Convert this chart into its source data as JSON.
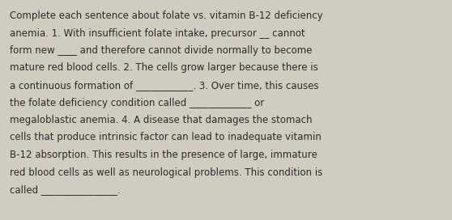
{
  "background_color": "#d0ccbf",
  "text_color": "#2a2a2a",
  "font_size": 8.5,
  "font_family": "DejaVu Sans",
  "lines": [
    "Complete each sentence about folate vs. vitamin B-12 deficiency",
    "anemia. 1. With insufficient folate intake, precursor __ cannot",
    "form new ____ and therefore cannot divide normally to become",
    "mature red blood cells. 2. The cells grow larger because there is",
    "a continuous formation of ____________. 3. Over time, this causes",
    "the folate deficiency condition called _____________ or",
    "megaloblastic anemia. 4. A disease that damages the stomach",
    "cells that produce intrinsic factor can lead to inadequate vitamin",
    "B-12 absorption. This results in the presence of large, immature",
    "red blood cells as well as neurological problems. This condition is",
    "called ________________."
  ]
}
